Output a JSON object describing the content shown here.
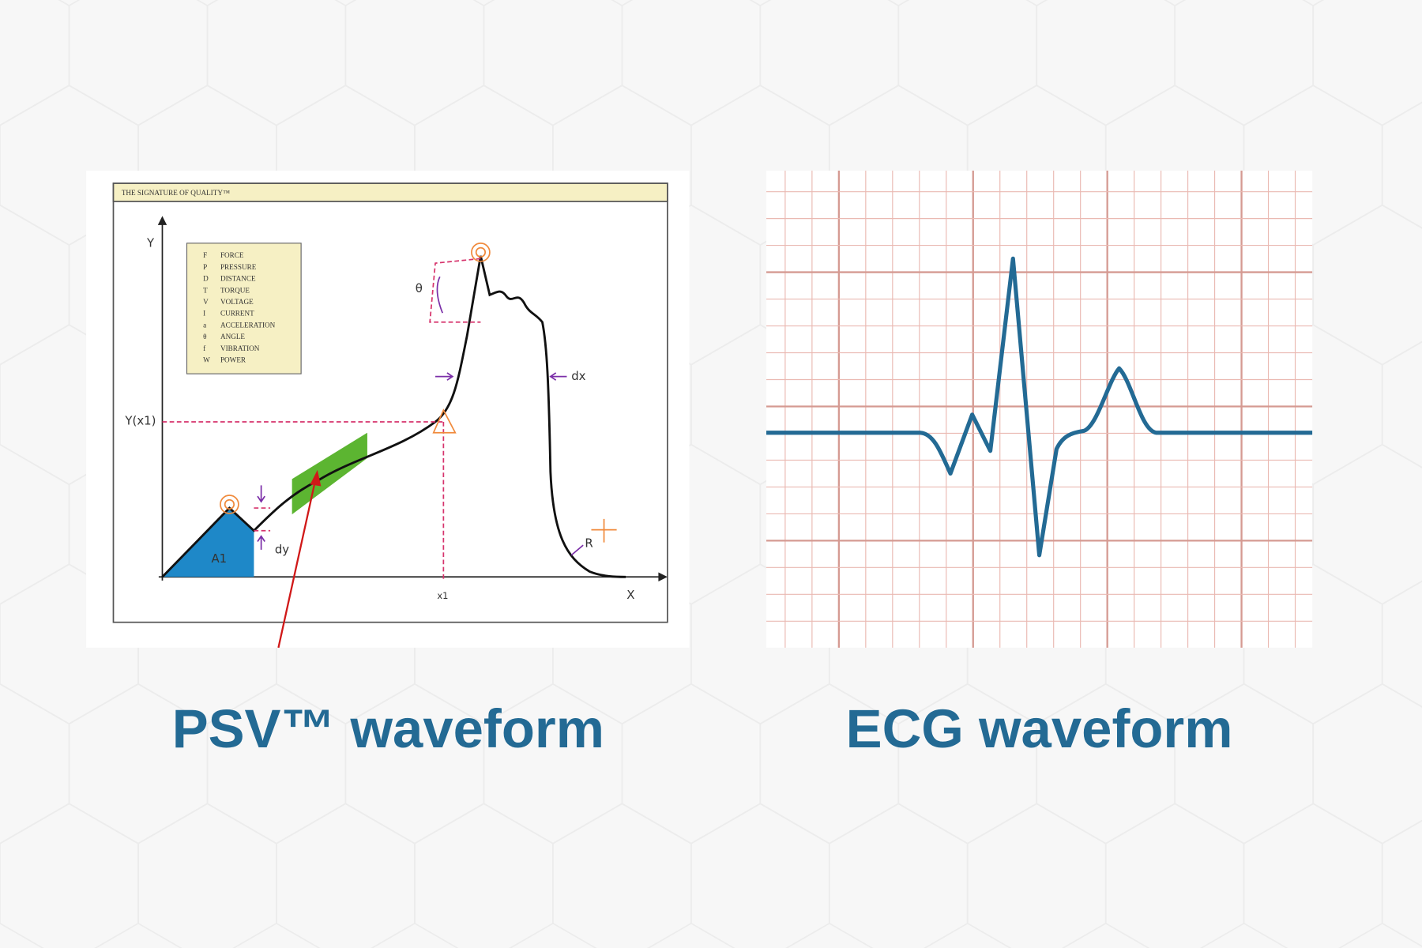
{
  "psv_diagram": {
    "header": "THE SIGNATURE OF QUALITY™",
    "y_axis": "Y",
    "x_axis": "X",
    "y_marker": "Y(x1)",
    "x_marker": "x1",
    "area_label": "A1",
    "labels": {
      "dy": "dy",
      "dx": "dx",
      "angle": "θ",
      "radius": "R"
    },
    "legend": [
      {
        "symbol": "F",
        "name": "FORCE"
      },
      {
        "symbol": "P",
        "name": "PRESSURE"
      },
      {
        "symbol": "D",
        "name": "DISTANCE"
      },
      {
        "symbol": "T",
        "name": "TORQUE"
      },
      {
        "symbol": "V",
        "name": "VOLTAGE"
      },
      {
        "symbol": "I",
        "name": "CURRENT"
      },
      {
        "symbol": "a",
        "name": "ACCELERATION"
      },
      {
        "symbol": "θ",
        "name": "ANGLE"
      },
      {
        "symbol": "f",
        "name": "VIBRATION"
      },
      {
        "symbol": "W",
        "name": "POWER"
      }
    ]
  },
  "captions": [
    "PSV™ waveform",
    "ECG waveform"
  ]
}
